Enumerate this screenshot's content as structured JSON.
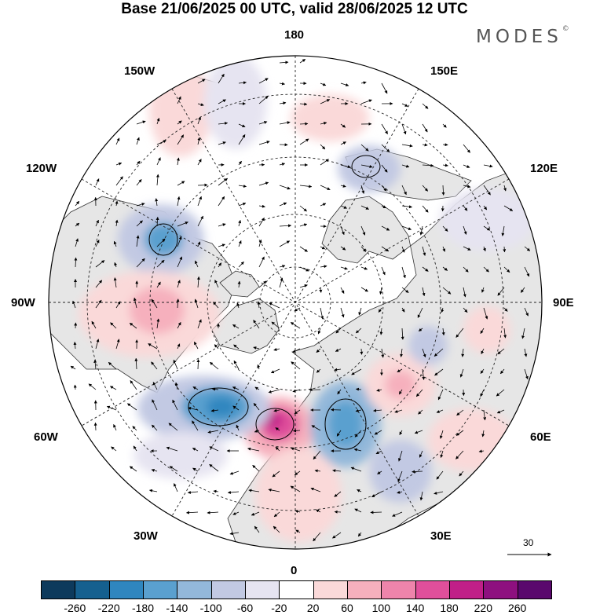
{
  "header": {
    "title": "Base 21/06/2025 00 UTC, valid 28/06/2025 12 UTC",
    "brand": "MODES",
    "brand_mark": "©"
  },
  "map": {
    "projection": "north-polar-stereographic",
    "longitude_labels": {
      "top": "180",
      "bottom": "0",
      "left": "90W",
      "right": "90E",
      "upper_left_1": "150W",
      "upper_left_2": "120W",
      "upper_right_1": "150E",
      "upper_right_2": "120E",
      "lower_left_1": "60W",
      "lower_left_2": "30W",
      "lower_right_1": "60E",
      "lower_right_2": "30E"
    },
    "land_color": "#e6e6e6",
    "ocean_color": "#ffffff"
  },
  "reference_vector": {
    "value": "30"
  },
  "legend": {
    "colors": [
      "#0d3a5c",
      "#15608f",
      "#2f86bf",
      "#5aa0cf",
      "#93b8da",
      "#c2c9e3",
      "#e6e4f1",
      "#ffffff",
      "#fad9d9",
      "#f6b0bd",
      "#ee84ab",
      "#e04f9b",
      "#c01f88",
      "#8e107f",
      "#5a086d"
    ],
    "ticks": [
      "-260",
      "-220",
      "-180",
      "-140",
      "-100",
      "-60",
      "-20",
      "20",
      "60",
      "100",
      "140",
      "180",
      "220",
      "260"
    ]
  }
}
